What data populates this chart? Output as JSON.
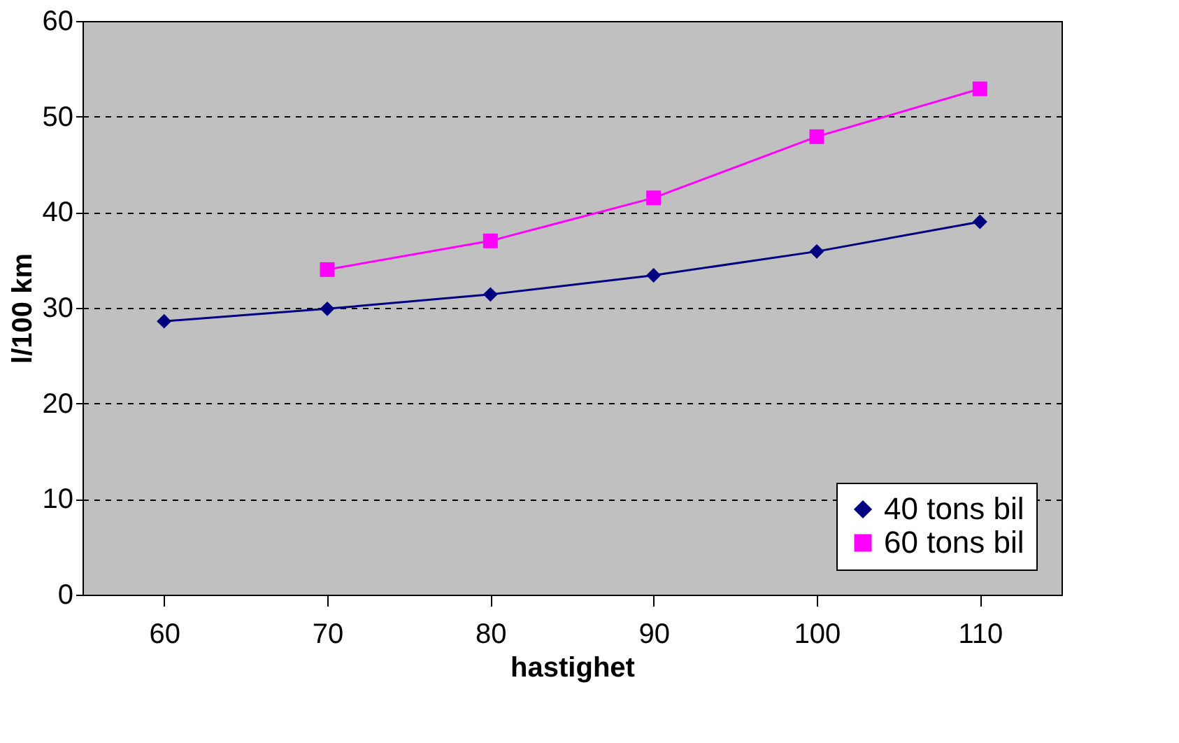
{
  "chart_data": {
    "type": "line",
    "xlabel": "hastighet",
    "ylabel": "l/100 km",
    "categories": [
      "60",
      "70",
      "80",
      "90",
      "100",
      "110"
    ],
    "series": [
      {
        "name": "40 tons bil",
        "color": "#000080",
        "marker": "diamond",
        "values": [
          28.6,
          29.9,
          31.4,
          33.4,
          35.9,
          39.0
        ]
      },
      {
        "name": "60 tons bil",
        "color": "#ff00ff",
        "marker": "square",
        "values": [
          null,
          34.0,
          37.0,
          41.5,
          47.9,
          52.9
        ]
      }
    ],
    "ylim": [
      0,
      60
    ],
    "yticks": [
      0,
      10,
      20,
      30,
      40,
      50,
      60
    ],
    "grid": "y",
    "legend": "bottom right",
    "line_style": "solid"
  }
}
